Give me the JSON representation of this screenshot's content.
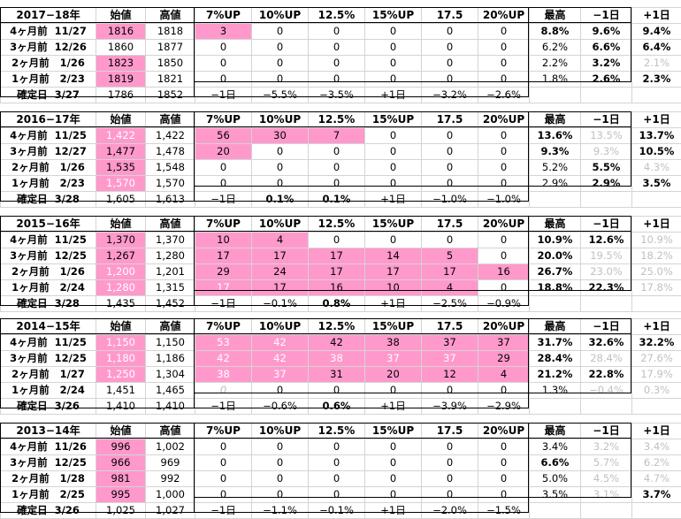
{
  "colors": {
    "highlight": "#ff99cc",
    "gray_text": "#c0c0c0",
    "grid": "#d4d4d4"
  },
  "headers": [
    "始値",
    "高値",
    "7%UP",
    "10%UP",
    "12.5%",
    "15%UP",
    "17.5",
    "20%UP",
    "最高",
    "−1日",
    "+1日"
  ],
  "blocks": [
    {
      "title": "2017−18年",
      "rows": [
        {
          "label": "4ヶ月前  11/27",
          "cells": [
            "1816",
            "1818",
            "3",
            "0",
            "0",
            "0",
            "0",
            "0",
            "8.8%",
            "9.6%",
            "9.4%"
          ]
        },
        {
          "label": "3ヶ月前  12/26",
          "cells": [
            "1860",
            "1877",
            "0",
            "0",
            "0",
            "0",
            "0",
            "0",
            "6.2%",
            "6.6%",
            "6.4%"
          ]
        },
        {
          "label": "2ヶ月前   1/26",
          "cells": [
            "1823",
            "1850",
            "0",
            "0",
            "0",
            "0",
            "0",
            "0",
            "2.2%",
            "3.2%",
            "2.1%"
          ]
        },
        {
          "label": "1ヶ月前   2/23",
          "cells": [
            "1819",
            "1821",
            "0",
            "0",
            "0",
            "0",
            "0",
            "0",
            "1.8%",
            "2.6%",
            "2.3%"
          ]
        },
        {
          "label": "確定日  3/27",
          "cells": [
            "1786",
            "1852",
            "−1日",
            "−5.5%",
            "−3.5%",
            "+1日",
            "−3.2%",
            "−2.6%",
            "",
            "",
            ""
          ]
        }
      ]
    },
    {
      "title": "2016−17年",
      "rows": [
        {
          "label": "4ヶ月前  11/25",
          "cells": [
            "1,422",
            "1,422",
            "56",
            "30",
            "7",
            "0",
            "0",
            "0",
            "13.6%",
            "13.5%",
            "13.7%"
          ]
        },
        {
          "label": "3ヶ月前  12/27",
          "cells": [
            "1,477",
            "1,478",
            "20",
            "0",
            "0",
            "0",
            "0",
            "0",
            "9.3%",
            "9.3%",
            "10.5%"
          ]
        },
        {
          "label": "2ヶ月前   1/26",
          "cells": [
            "1,535",
            "1,548",
            "0",
            "0",
            "0",
            "0",
            "0",
            "0",
            "5.2%",
            "5.5%",
            "4.3%"
          ]
        },
        {
          "label": "1ヶ月前   2/23",
          "cells": [
            "1,570",
            "1,570",
            "0",
            "0",
            "0",
            "0",
            "0",
            "0",
            "2.9%",
            "2.9%",
            "3.5%"
          ]
        },
        {
          "label": "確定日  3/28",
          "cells": [
            "1,605",
            "1,613",
            "−1日",
            "0.1%",
            "0.1%",
            "+1日",
            "−1.0%",
            "−1.0%",
            "",
            "",
            ""
          ]
        }
      ]
    },
    {
      "title": "2015−16年",
      "rows": [
        {
          "label": "4ヶ月前  11/25",
          "cells": [
            "1,370",
            "1,370",
            "10",
            "4",
            "0",
            "0",
            "0",
            "0",
            "10.9%",
            "12.6%",
            "10.9%"
          ]
        },
        {
          "label": "3ヶ月前  12/25",
          "cells": [
            "1,267",
            "1,280",
            "17",
            "17",
            "17",
            "14",
            "5",
            "0",
            "20.0%",
            "19.5%",
            "18.2%"
          ]
        },
        {
          "label": "2ヶ月前   1/26",
          "cells": [
            "1,200",
            "1,201",
            "29",
            "24",
            "17",
            "17",
            "17",
            "16",
            "26.7%",
            "23.0%",
            "25.0%"
          ]
        },
        {
          "label": "1ヶ月前   2/24",
          "cells": [
            "1,280",
            "1,315",
            "17",
            "17",
            "16",
            "10",
            "4",
            "0",
            "18.8%",
            "22.3%",
            "17.8%"
          ]
        },
        {
          "label": "確定日  3/28",
          "cells": [
            "1,435",
            "1,452",
            "−1日",
            "−0.1%",
            "0.8%",
            "+1日",
            "−2.5%",
            "−0.9%",
            "",
            "",
            ""
          ]
        }
      ]
    },
    {
      "title": "2014−15年",
      "rows": [
        {
          "label": "4ヶ月前  11/25",
          "cells": [
            "1,150",
            "1,150",
            "53",
            "42",
            "42",
            "38",
            "37",
            "37",
            "31.7%",
            "32.6%",
            "32.2%"
          ]
        },
        {
          "label": "3ヶ月前  12/25",
          "cells": [
            "1,180",
            "1,186",
            "42",
            "42",
            "38",
            "37",
            "37",
            "29",
            "28.4%",
            "28.4%",
            "27.6%"
          ]
        },
        {
          "label": "2ヶ月前   1/27",
          "cells": [
            "1,250",
            "1,304",
            "38",
            "37",
            "31",
            "20",
            "12",
            "4",
            "21.2%",
            "22.8%",
            "17.9%"
          ]
        },
        {
          "label": "1ヶ月前   2/24",
          "cells": [
            "1,451",
            "1,465",
            "0",
            "0",
            "0",
            "0",
            "0",
            "0",
            "1.3%",
            "−0.4%",
            "0.3%"
          ]
        },
        {
          "label": "確定日  3/26",
          "cells": [
            "1,410",
            "1,410",
            "−1日",
            "−0.6%",
            "0.6%",
            "+1日",
            "−3.9%",
            "−2.9%",
            "",
            "",
            ""
          ]
        }
      ]
    },
    {
      "title": "2013−14年",
      "rows": [
        {
          "label": "4ヶ月前  11/26",
          "cells": [
            "996",
            "1,002",
            "0",
            "0",
            "0",
            "0",
            "0",
            "0",
            "3.4%",
            "3.2%",
            "3.4%"
          ]
        },
        {
          "label": "3ヶ月前  12/25",
          "cells": [
            "966",
            "969",
            "0",
            "0",
            "0",
            "0",
            "0",
            "0",
            "6.6%",
            "5.7%",
            "6.2%"
          ]
        },
        {
          "label": "2ヶ月前   1/28",
          "cells": [
            "981",
            "992",
            "0",
            "0",
            "0",
            "0",
            "0",
            "0",
            "5.0%",
            "4.5%",
            "4.7%"
          ]
        },
        {
          "label": "1ヶ月前   2/25",
          "cells": [
            "995",
            "1,000",
            "0",
            "0",
            "0",
            "0",
            "0",
            "0",
            "3.5%",
            "3.1%",
            "3.7%"
          ]
        },
        {
          "label": "確定日  3/26",
          "cells": [
            "1,025",
            "1,027",
            "−1日",
            "−1.1%",
            "−0.1%",
            "+1日",
            "−2.0%",
            "−1.5%",
            "",
            "",
            ""
          ]
        }
      ]
    }
  ]
}
